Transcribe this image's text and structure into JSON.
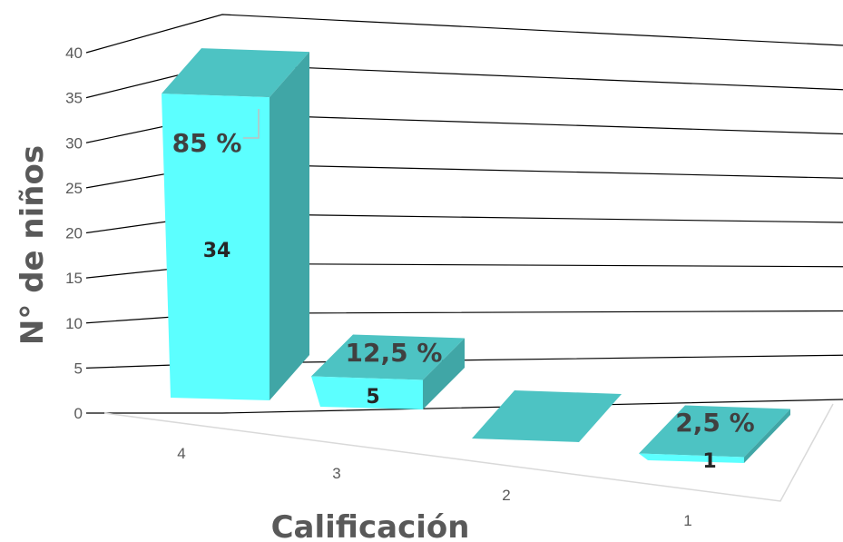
{
  "chart_data": {
    "type": "bar",
    "style": "3d-column",
    "title": "",
    "xlabel": "Calificación",
    "ylabel": "N° de niños",
    "ylim": [
      0,
      40
    ],
    "yticks": [
      "0",
      "5",
      "10",
      "15",
      "20",
      "25",
      "30",
      "35",
      "40"
    ],
    "grid": true,
    "categories": [
      "4",
      "3",
      "2",
      "1"
    ],
    "values": [
      34,
      5,
      0,
      1
    ],
    "value_labels": [
      "34",
      "5",
      "",
      "1"
    ],
    "percent_labels": [
      "85 %",
      "12,5 %",
      "",
      "2,5 %"
    ],
    "colors": {
      "front": "#5CFFFF",
      "side": "#40A6A6",
      "top": "#4DC3C3",
      "grid": "#000000",
      "label_box": "#BFBFBF"
    }
  }
}
